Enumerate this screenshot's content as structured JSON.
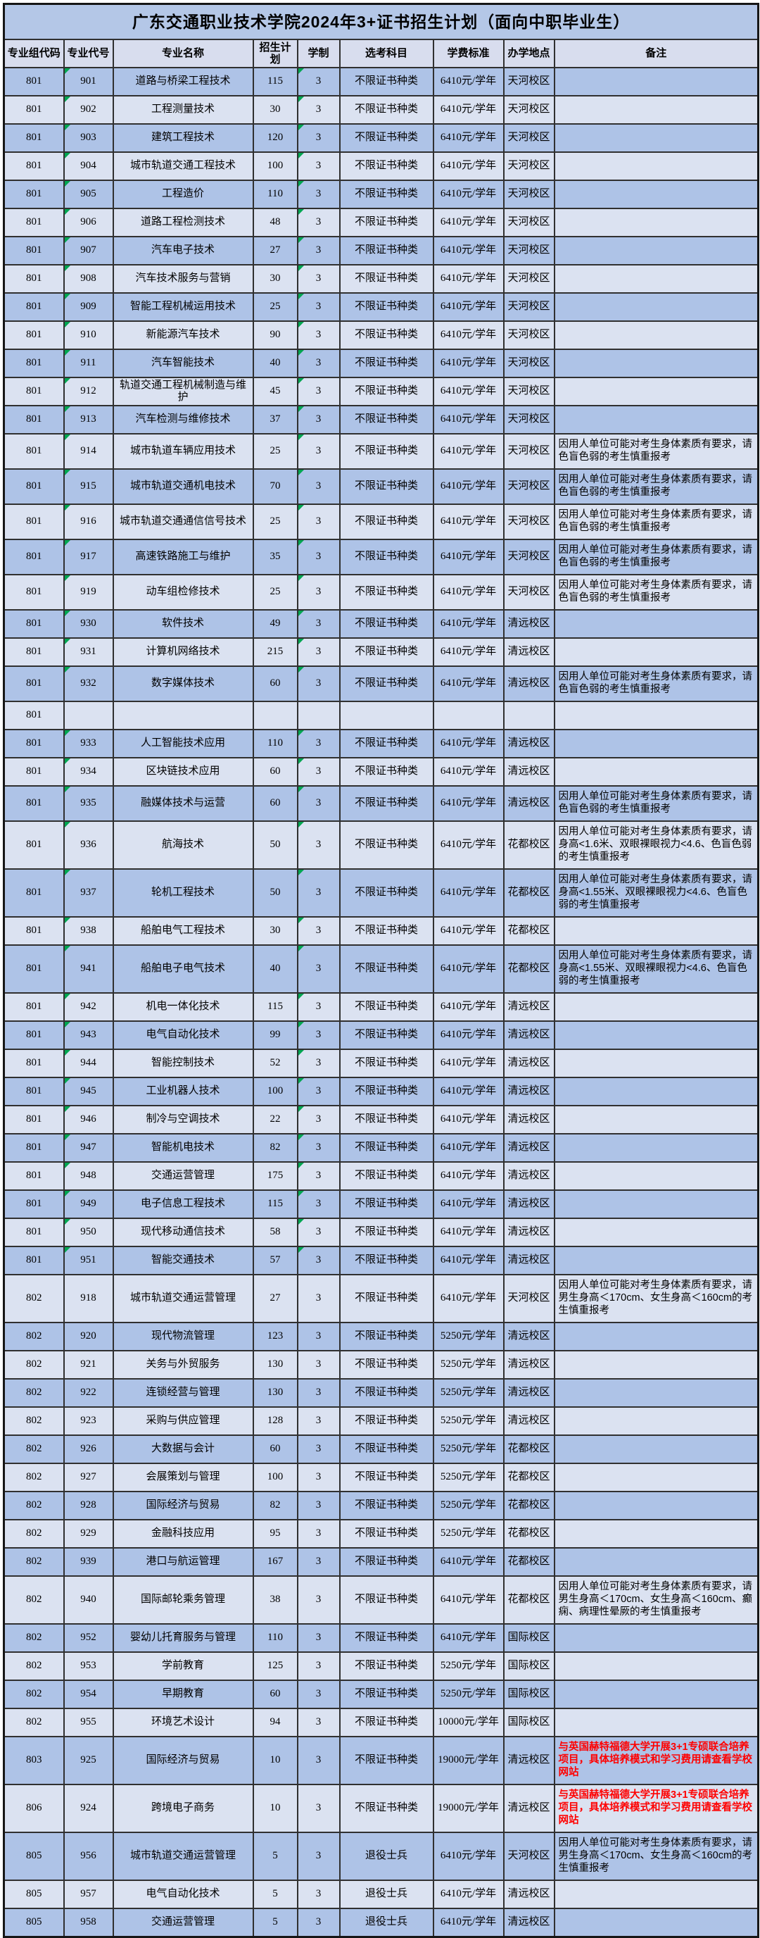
{
  "title": "广东交通职业技术学院2024年3+证书招生计划（面向中职毕业生）",
  "colors": {
    "title_bg": "#b4c7e7",
    "header_bg": "#d8ddee",
    "row_dark": "#aec3e7",
    "row_light": "#dbe2f1",
    "border": "#303030",
    "remark_red": "#ff0000",
    "triangle_green": "#00a651"
  },
  "table": {
    "headers": [
      "专业组代码",
      "专业代号",
      "专业名称",
      "招生计划",
      "学制",
      "选考科目",
      "学费标准",
      "办学地点",
      "备注"
    ],
    "rows": [
      {
        "g": "801",
        "c": "901",
        "m": "道路与桥梁工程技术",
        "p": "115",
        "y": "3",
        "s": "不限证书种类",
        "f": "6410元/学年",
        "a": "天河校区",
        "r": "",
        "red": false,
        "ln": 1,
        "tri": true
      },
      {
        "g": "801",
        "c": "902",
        "m": "工程测量技术",
        "p": "30",
        "y": "3",
        "s": "不限证书种类",
        "f": "6410元/学年",
        "a": "天河校区",
        "r": "",
        "red": false,
        "ln": 1,
        "tri": true
      },
      {
        "g": "801",
        "c": "903",
        "m": "建筑工程技术",
        "p": "120",
        "y": "3",
        "s": "不限证书种类",
        "f": "6410元/学年",
        "a": "天河校区",
        "r": "",
        "red": false,
        "ln": 1,
        "tri": true
      },
      {
        "g": "801",
        "c": "904",
        "m": "城市轨道交通工程技术",
        "p": "100",
        "y": "3",
        "s": "不限证书种类",
        "f": "6410元/学年",
        "a": "天河校区",
        "r": "",
        "red": false,
        "ln": 1,
        "tri": true
      },
      {
        "g": "801",
        "c": "905",
        "m": "工程造价",
        "p": "110",
        "y": "3",
        "s": "不限证书种类",
        "f": "6410元/学年",
        "a": "天河校区",
        "r": "",
        "red": false,
        "ln": 1,
        "tri": true
      },
      {
        "g": "801",
        "c": "906",
        "m": "道路工程检测技术",
        "p": "48",
        "y": "3",
        "s": "不限证书种类",
        "f": "6410元/学年",
        "a": "天河校区",
        "r": "",
        "red": false,
        "ln": 1,
        "tri": true
      },
      {
        "g": "801",
        "c": "907",
        "m": "汽车电子技术",
        "p": "27",
        "y": "3",
        "s": "不限证书种类",
        "f": "6410元/学年",
        "a": "天河校区",
        "r": "",
        "red": false,
        "ln": 1,
        "tri": true
      },
      {
        "g": "801",
        "c": "908",
        "m": "汽车技术服务与营销",
        "p": "30",
        "y": "3",
        "s": "不限证书种类",
        "f": "6410元/学年",
        "a": "天河校区",
        "r": "",
        "red": false,
        "ln": 1,
        "tri": true
      },
      {
        "g": "801",
        "c": "909",
        "m": "智能工程机械运用技术",
        "p": "25",
        "y": "3",
        "s": "不限证书种类",
        "f": "6410元/学年",
        "a": "天河校区",
        "r": "",
        "red": false,
        "ln": 1,
        "tri": true
      },
      {
        "g": "801",
        "c": "910",
        "m": "新能源汽车技术",
        "p": "90",
        "y": "3",
        "s": "不限证书种类",
        "f": "6410元/学年",
        "a": "天河校区",
        "r": "",
        "red": false,
        "ln": 1,
        "tri": true
      },
      {
        "g": "801",
        "c": "911",
        "m": "汽车智能技术",
        "p": "40",
        "y": "3",
        "s": "不限证书种类",
        "f": "6410元/学年",
        "a": "天河校区",
        "r": "",
        "red": false,
        "ln": 1,
        "tri": true
      },
      {
        "g": "801",
        "c": "912",
        "m": "轨道交通工程机械制造与维护",
        "p": "45",
        "y": "3",
        "s": "不限证书种类",
        "f": "6410元/学年",
        "a": "天河校区",
        "r": "",
        "red": false,
        "ln": 1,
        "tri": true
      },
      {
        "g": "801",
        "c": "913",
        "m": "汽车检测与维修技术",
        "p": "37",
        "y": "3",
        "s": "不限证书种类",
        "f": "6410元/学年",
        "a": "天河校区",
        "r": "",
        "red": false,
        "ln": 1,
        "tri": true
      },
      {
        "g": "801",
        "c": "914",
        "m": "城市轨道车辆应用技术",
        "p": "25",
        "y": "3",
        "s": "不限证书种类",
        "f": "6410元/学年",
        "a": "天河校区",
        "r": "因用人单位可能对考生身体素质有要求，请色盲色弱的考生慎重报考",
        "red": false,
        "ln": 2,
        "tri": true
      },
      {
        "g": "801",
        "c": "915",
        "m": "城市轨道交通机电技术",
        "p": "70",
        "y": "3",
        "s": "不限证书种类",
        "f": "6410元/学年",
        "a": "天河校区",
        "r": "因用人单位可能对考生身体素质有要求，请色盲色弱的考生慎重报考",
        "red": false,
        "ln": 2,
        "tri": true
      },
      {
        "g": "801",
        "c": "916",
        "m": "城市轨道交通通信信号技术",
        "p": "25",
        "y": "3",
        "s": "不限证书种类",
        "f": "6410元/学年",
        "a": "天河校区",
        "r": "因用人单位可能对考生身体素质有要求，请色盲色弱的考生慎重报考",
        "red": false,
        "ln": 2,
        "tri": true
      },
      {
        "g": "801",
        "c": "917",
        "m": "高速铁路施工与维护",
        "p": "35",
        "y": "3",
        "s": "不限证书种类",
        "f": "6410元/学年",
        "a": "天河校区",
        "r": "因用人单位可能对考生身体素质有要求，请色盲色弱的考生慎重报考",
        "red": false,
        "ln": 2,
        "tri": true
      },
      {
        "g": "801",
        "c": "919",
        "m": "动车组检修技术",
        "p": "25",
        "y": "3",
        "s": "不限证书种类",
        "f": "6410元/学年",
        "a": "天河校区",
        "r": "因用人单位可能对考生身体素质有要求，请色盲色弱的考生慎重报考",
        "red": false,
        "ln": 2,
        "tri": true
      },
      {
        "g": "801",
        "c": "930",
        "m": "软件技术",
        "p": "49",
        "y": "3",
        "s": "不限证书种类",
        "f": "6410元/学年",
        "a": "清远校区",
        "r": "",
        "red": false,
        "ln": 1,
        "tri": true
      },
      {
        "g": "801",
        "c": "931",
        "m": "计算机网络技术",
        "p": "215",
        "y": "3",
        "s": "不限证书种类",
        "f": "6410元/学年",
        "a": "清远校区",
        "r": "",
        "red": false,
        "ln": 1,
        "tri": true
      },
      {
        "g": "801",
        "c": "932",
        "m": "数字媒体技术",
        "p": "60",
        "y": "3",
        "s": "不限证书种类",
        "f": "6410元/学年",
        "a": "清远校区",
        "r": "因用人单位可能对考生身体素质有要求，请色盲色弱的考生慎重报考",
        "red": false,
        "ln": 2,
        "tri": true
      },
      {
        "g": "801",
        "c": "",
        "m": "",
        "p": "",
        "y": "",
        "s": "",
        "f": "",
        "a": "",
        "r": "",
        "red": false,
        "ln": 1,
        "tri": false
      },
      {
        "g": "801",
        "c": "933",
        "m": "人工智能技术应用",
        "p": "110",
        "y": "3",
        "s": "不限证书种类",
        "f": "6410元/学年",
        "a": "清远校区",
        "r": "",
        "red": false,
        "ln": 1,
        "tri": true
      },
      {
        "g": "801",
        "c": "934",
        "m": "区块链技术应用",
        "p": "60",
        "y": "3",
        "s": "不限证书种类",
        "f": "6410元/学年",
        "a": "清远校区",
        "r": "",
        "red": false,
        "ln": 1,
        "tri": true
      },
      {
        "g": "801",
        "c": "935",
        "m": "融媒体技术与运营",
        "p": "60",
        "y": "3",
        "s": "不限证书种类",
        "f": "6410元/学年",
        "a": "清远校区",
        "r": "因用人单位可能对考生身体素质有要求，请色盲色弱的考生慎重报考",
        "red": false,
        "ln": 2,
        "tri": true
      },
      {
        "g": "801",
        "c": "936",
        "m": "航海技术",
        "p": "50",
        "y": "3",
        "s": "不限证书种类",
        "f": "6410元/学年",
        "a": "花都校区",
        "r": "因用人单位可能对考生身体素质有要求，请身高<1.6米、双眼裸眼视力<4.6、色盲色弱的考生慎重报考",
        "red": false,
        "ln": 3,
        "tri": true
      },
      {
        "g": "801",
        "c": "937",
        "m": "轮机工程技术",
        "p": "50",
        "y": "3",
        "s": "不限证书种类",
        "f": "6410元/学年",
        "a": "花都校区",
        "r": "因用人单位可能对考生身体素质有要求，请身高<1.55米、双眼裸眼视力<4.6、色盲色弱的考生慎重报考",
        "red": false,
        "ln": 3,
        "tri": true
      },
      {
        "g": "801",
        "c": "938",
        "m": "船舶电气工程技术",
        "p": "30",
        "y": "3",
        "s": "不限证书种类",
        "f": "6410元/学年",
        "a": "花都校区",
        "r": "",
        "red": false,
        "ln": 1,
        "tri": true
      },
      {
        "g": "801",
        "c": "941",
        "m": "船舶电子电气技术",
        "p": "40",
        "y": "3",
        "s": "不限证书种类",
        "f": "6410元/学年",
        "a": "花都校区",
        "r": "因用人单位可能对考生身体素质有要求，请身高<1.55米、双眼裸眼视力<4.6、色盲色弱的考生慎重报考",
        "red": false,
        "ln": 3,
        "tri": true
      },
      {
        "g": "801",
        "c": "942",
        "m": "机电一体化技术",
        "p": "115",
        "y": "3",
        "s": "不限证书种类",
        "f": "6410元/学年",
        "a": "清远校区",
        "r": "",
        "red": false,
        "ln": 1,
        "tri": true
      },
      {
        "g": "801",
        "c": "943",
        "m": "电气自动化技术",
        "p": "99",
        "y": "3",
        "s": "不限证书种类",
        "f": "6410元/学年",
        "a": "清远校区",
        "r": "",
        "red": false,
        "ln": 1,
        "tri": true
      },
      {
        "g": "801",
        "c": "944",
        "m": "智能控制技术",
        "p": "52",
        "y": "3",
        "s": "不限证书种类",
        "f": "6410元/学年",
        "a": "清远校区",
        "r": "",
        "red": false,
        "ln": 1,
        "tri": true
      },
      {
        "g": "801",
        "c": "945",
        "m": "工业机器人技术",
        "p": "100",
        "y": "3",
        "s": "不限证书种类",
        "f": "6410元/学年",
        "a": "清远校区",
        "r": "",
        "red": false,
        "ln": 1,
        "tri": true
      },
      {
        "g": "801",
        "c": "946",
        "m": "制冷与空调技术",
        "p": "22",
        "y": "3",
        "s": "不限证书种类",
        "f": "6410元/学年",
        "a": "清远校区",
        "r": "",
        "red": false,
        "ln": 1,
        "tri": true
      },
      {
        "g": "801",
        "c": "947",
        "m": "智能机电技术",
        "p": "82",
        "y": "3",
        "s": "不限证书种类",
        "f": "6410元/学年",
        "a": "清远校区",
        "r": "",
        "red": false,
        "ln": 1,
        "tri": true
      },
      {
        "g": "801",
        "c": "948",
        "m": "交通运营管理",
        "p": "175",
        "y": "3",
        "s": "不限证书种类",
        "f": "6410元/学年",
        "a": "清远校区",
        "r": "",
        "red": false,
        "ln": 1,
        "tri": true
      },
      {
        "g": "801",
        "c": "949",
        "m": "电子信息工程技术",
        "p": "115",
        "y": "3",
        "s": "不限证书种类",
        "f": "6410元/学年",
        "a": "清远校区",
        "r": "",
        "red": false,
        "ln": 1,
        "tri": true
      },
      {
        "g": "801",
        "c": "950",
        "m": "现代移动通信技术",
        "p": "58",
        "y": "3",
        "s": "不限证书种类",
        "f": "6410元/学年",
        "a": "清远校区",
        "r": "",
        "red": false,
        "ln": 1,
        "tri": true
      },
      {
        "g": "801",
        "c": "951",
        "m": "智能交通技术",
        "p": "57",
        "y": "3",
        "s": "不限证书种类",
        "f": "6410元/学年",
        "a": "清远校区",
        "r": "",
        "red": false,
        "ln": 1,
        "tri": true
      },
      {
        "g": "802",
        "c": "918",
        "m": "城市轨道交通运营管理",
        "p": "27",
        "y": "3",
        "s": "不限证书种类",
        "f": "6410元/学年",
        "a": "天河校区",
        "r": "因用人单位可能对考生身体素质有要求，请男生身高＜170cm、女生身高＜160cm的考生慎重报考",
        "red": false,
        "ln": 3,
        "tri": false
      },
      {
        "g": "802",
        "c": "920",
        "m": "现代物流管理",
        "p": "123",
        "y": "3",
        "s": "不限证书种类",
        "f": "5250元/学年",
        "a": "清远校区",
        "r": "",
        "red": false,
        "ln": 1,
        "tri": false
      },
      {
        "g": "802",
        "c": "921",
        "m": "关务与外贸服务",
        "p": "130",
        "y": "3",
        "s": "不限证书种类",
        "f": "5250元/学年",
        "a": "清远校区",
        "r": "",
        "red": false,
        "ln": 1,
        "tri": false
      },
      {
        "g": "802",
        "c": "922",
        "m": "连锁经营与管理",
        "p": "130",
        "y": "3",
        "s": "不限证书种类",
        "f": "5250元/学年",
        "a": "清远校区",
        "r": "",
        "red": false,
        "ln": 1,
        "tri": false
      },
      {
        "g": "802",
        "c": "923",
        "m": "采购与供应管理",
        "p": "128",
        "y": "3",
        "s": "不限证书种类",
        "f": "5250元/学年",
        "a": "清远校区",
        "r": "",
        "red": false,
        "ln": 1,
        "tri": false
      },
      {
        "g": "802",
        "c": "926",
        "m": "大数据与会计",
        "p": "60",
        "y": "3",
        "s": "不限证书种类",
        "f": "5250元/学年",
        "a": "花都校区",
        "r": "",
        "red": false,
        "ln": 1,
        "tri": false
      },
      {
        "g": "802",
        "c": "927",
        "m": "会展策划与管理",
        "p": "100",
        "y": "3",
        "s": "不限证书种类",
        "f": "5250元/学年",
        "a": "花都校区",
        "r": "",
        "red": false,
        "ln": 1,
        "tri": false
      },
      {
        "g": "802",
        "c": "928",
        "m": "国际经济与贸易",
        "p": "82",
        "y": "3",
        "s": "不限证书种类",
        "f": "5250元/学年",
        "a": "花都校区",
        "r": "",
        "red": false,
        "ln": 1,
        "tri": false
      },
      {
        "g": "802",
        "c": "929",
        "m": "金融科技应用",
        "p": "95",
        "y": "3",
        "s": "不限证书种类",
        "f": "5250元/学年",
        "a": "花都校区",
        "r": "",
        "red": false,
        "ln": 1,
        "tri": false
      },
      {
        "g": "802",
        "c": "939",
        "m": "港口与航运管理",
        "p": "167",
        "y": "3",
        "s": "不限证书种类",
        "f": "6410元/学年",
        "a": "花都校区",
        "r": "",
        "red": false,
        "ln": 1,
        "tri": false
      },
      {
        "g": "802",
        "c": "940",
        "m": "国际邮轮乘务管理",
        "p": "38",
        "y": "3",
        "s": "不限证书种类",
        "f": "6410元/学年",
        "a": "花都校区",
        "r": "因用人单位可能对考生身体素质有要求，请男生身高＜170cm、女生身高＜160cm、癫痫、病理性晕厥的考生慎重报考",
        "red": false,
        "ln": 3,
        "tri": false
      },
      {
        "g": "802",
        "c": "952",
        "m": "婴幼儿托育服务与管理",
        "p": "110",
        "y": "3",
        "s": "不限证书种类",
        "f": "6410元/学年",
        "a": "国际校区",
        "r": "",
        "red": false,
        "ln": 1,
        "tri": false
      },
      {
        "g": "802",
        "c": "953",
        "m": "学前教育",
        "p": "125",
        "y": "3",
        "s": "不限证书种类",
        "f": "5250元/学年",
        "a": "国际校区",
        "r": "",
        "red": false,
        "ln": 1,
        "tri": false
      },
      {
        "g": "802",
        "c": "954",
        "m": "早期教育",
        "p": "60",
        "y": "3",
        "s": "不限证书种类",
        "f": "5250元/学年",
        "a": "国际校区",
        "r": "",
        "red": false,
        "ln": 1,
        "tri": false
      },
      {
        "g": "802",
        "c": "955",
        "m": "环境艺术设计",
        "p": "94",
        "y": "3",
        "s": "不限证书种类",
        "f": "10000元/学年",
        "a": "国际校区",
        "r": "",
        "red": false,
        "ln": 1,
        "tri": false
      },
      {
        "g": "803",
        "c": "925",
        "m": "国际经济与贸易",
        "p": "10",
        "y": "3",
        "s": "不限证书种类",
        "f": "19000元/学年",
        "a": "清远校区",
        "r": "与英国赫特福德大学开展3+1专硕联合培养项目，具体培养模式和学习费用请查看学校网站",
        "red": true,
        "ln": 3,
        "tri": false
      },
      {
        "g": "806",
        "c": "924",
        "m": "跨境电子商务",
        "p": "10",
        "y": "3",
        "s": "不限证书种类",
        "f": "19000元/学年",
        "a": "清远校区",
        "r": "与英国赫特福德大学开展3+1专硕联合培养项目，具体培养模式和学习费用请查看学校网站",
        "red": true,
        "ln": 3,
        "tri": false
      },
      {
        "g": "805",
        "c": "956",
        "m": "城市轨道交通运营管理",
        "p": "5",
        "y": "3",
        "s": "退役士兵",
        "f": "6410元/学年",
        "a": "天河校区",
        "r": "因用人单位可能对考生身体素质有要求，请男生身高＜170cm、女生身高＜160cm的考生慎重报考",
        "red": false,
        "ln": 3,
        "tri": false
      },
      {
        "g": "805",
        "c": "957",
        "m": "电气自动化技术",
        "p": "5",
        "y": "3",
        "s": "退役士兵",
        "f": "6410元/学年",
        "a": "清远校区",
        "r": "",
        "red": false,
        "ln": 1,
        "tri": false
      },
      {
        "g": "805",
        "c": "958",
        "m": "交通运营管理",
        "p": "5",
        "y": "3",
        "s": "退役士兵",
        "f": "6410元/学年",
        "a": "清远校区",
        "r": "",
        "red": false,
        "ln": 1,
        "tri": false
      }
    ]
  }
}
